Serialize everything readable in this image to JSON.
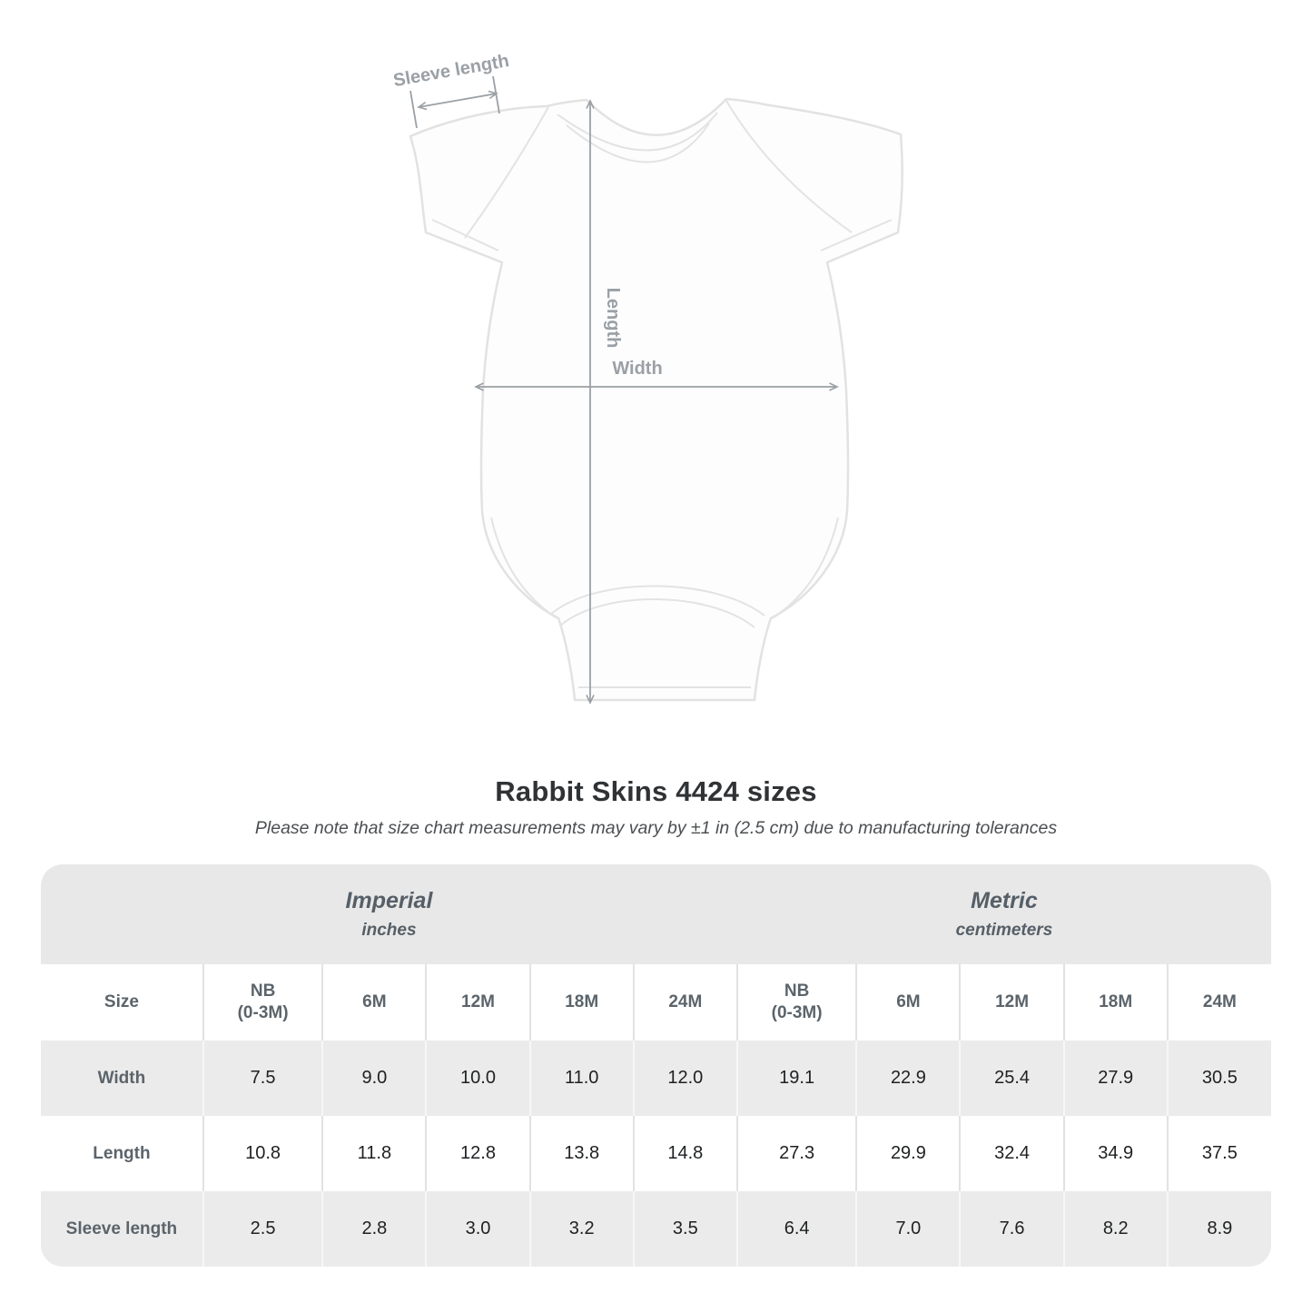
{
  "title": "Rabbit Skins 4424 sizes",
  "subtitle": "Please note that size chart measurements may vary by ±1 in (2.5 cm) due to manufacturing tolerances",
  "diagram": {
    "sleeve_length_label": "Sleeve length",
    "length_label": "Length",
    "width_label": "Width"
  },
  "table": {
    "unit_groups": [
      {
        "name": "Imperial",
        "unit": "inches"
      },
      {
        "name": "Metric",
        "unit": "centimeters"
      }
    ],
    "size_col_header": "Size",
    "size_headers": [
      "NB\n(0-3M)",
      "6M",
      "12M",
      "18M",
      "24M"
    ],
    "rows": [
      {
        "label": "Width",
        "imperial": [
          "7.5",
          "9.0",
          "10.0",
          "11.0",
          "12.0"
        ],
        "metric": [
          "19.1",
          "22.9",
          "25.4",
          "27.9",
          "30.5"
        ]
      },
      {
        "label": "Length",
        "imperial": [
          "10.8",
          "11.8",
          "12.8",
          "13.8",
          "14.8"
        ],
        "metric": [
          "27.3",
          "29.9",
          "32.4",
          "34.9",
          "37.5"
        ]
      },
      {
        "label": "Sleeve length",
        "imperial": [
          "2.5",
          "2.8",
          "3.0",
          "3.2",
          "3.5"
        ],
        "metric": [
          "6.4",
          "7.0",
          "7.6",
          "8.2",
          "8.9"
        ]
      }
    ]
  },
  "colors": {
    "annotation_gray": "#9aa0a5",
    "band_gray": "#e8e8e8",
    "stripe_gray": "#ebebeb",
    "title_text": "#303335",
    "header_text": "#5b646b",
    "value_text": "#1e2022"
  }
}
